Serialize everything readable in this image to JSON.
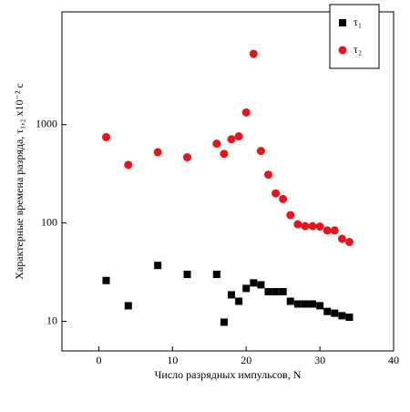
{
  "chart_data": {
    "type": "scatter",
    "x_label": "Число разрядных импульсов, N",
    "y_label": "Характерные времена разряда, τ₁,₂ x10⁻² с",
    "x": [
      1,
      4,
      8,
      12,
      16,
      17,
      18,
      19,
      20,
      21,
      22,
      23,
      24,
      25,
      26,
      27,
      28,
      29,
      30,
      31,
      32,
      33,
      34
    ],
    "series": [
      {
        "name": "τ₁",
        "color": "#000000",
        "marker": "square",
        "values": [
          26,
          14.4,
          37,
          30,
          30,
          9.8,
          18.6,
          16,
          21.6,
          24.6,
          23.5,
          20,
          20,
          20,
          16,
          15,
          15,
          15,
          14.4,
          12.6,
          12.1,
          11.4,
          11
        ]
      },
      {
        "name": "τ₂",
        "color": "#e8141c",
        "marker": "circle",
        "values": [
          745,
          390,
          525,
          465,
          640,
          505,
          710,
          760,
          1330,
          5250,
          540,
          310,
          200,
          175,
          120,
          97,
          93,
          93,
          92,
          84,
          84,
          69,
          64
        ]
      }
    ],
    "xlim": [
      -5,
      40
    ],
    "xticks": [
      0,
      10,
      20,
      30,
      40
    ],
    "ylim": [
      5,
      14000
    ],
    "yticks": [
      10,
      100,
      1000
    ],
    "log_y": true,
    "legend": "upper right"
  }
}
